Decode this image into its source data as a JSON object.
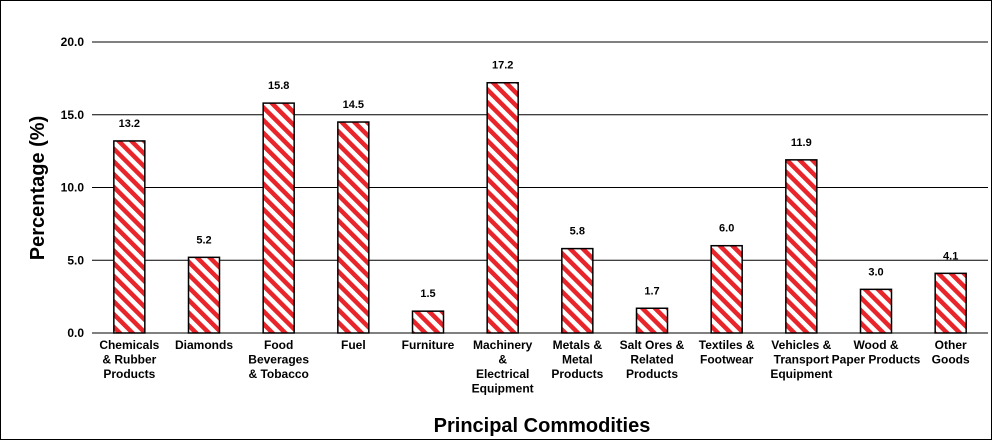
{
  "chart_data": {
    "type": "bar",
    "xlabel": "Principal Commodities",
    "ylabel": "Percentage (%)",
    "ylim": [
      0,
      20
    ],
    "yticks": [
      "0.0",
      "5.0",
      "10.0",
      "15.0",
      "20.0"
    ],
    "grid": true,
    "bar_color": "#e8252a",
    "bar_pattern": "diagonal-stripes",
    "categories": [
      "Chemicals & Rubber Products",
      "Diamonds",
      "Food Beverages & Tobacco",
      "Fuel",
      "Furniture",
      "Machinery & Electrical Equipment",
      "Metals & Metal Products",
      "Salt Ores & Related Products",
      "Textiles & Footwear",
      "Vehicles & Transport Equipment",
      "Wood & Paper Products",
      "Other Goods"
    ],
    "category_lines": [
      [
        "Chemicals",
        "& Rubber",
        "Products"
      ],
      [
        "Diamonds"
      ],
      [
        "Food",
        "Beverages",
        "& Tobacco"
      ],
      [
        "Fuel"
      ],
      [
        "Furniture"
      ],
      [
        "Machinery",
        "&",
        "Electrical",
        "Equipment"
      ],
      [
        "Metals &",
        "Metal",
        "Products"
      ],
      [
        "Salt Ores &",
        "Related",
        "Products"
      ],
      [
        "Textiles &",
        "Footwear"
      ],
      [
        "Vehicles &",
        "Transport",
        "Equipment"
      ],
      [
        "Wood &",
        "Paper Products"
      ],
      [
        "Other",
        "Goods"
      ]
    ],
    "values": [
      13.2,
      5.2,
      15.8,
      14.5,
      1.5,
      17.2,
      5.8,
      1.7,
      6.0,
      11.9,
      3.0,
      4.1
    ],
    "data_labels": [
      "13.2",
      "5.2",
      "15.8",
      "14.5",
      "1.5",
      "17.2",
      "5.8",
      "1.7",
      "6.0",
      "11.9",
      "3.0",
      "4.1"
    ]
  }
}
